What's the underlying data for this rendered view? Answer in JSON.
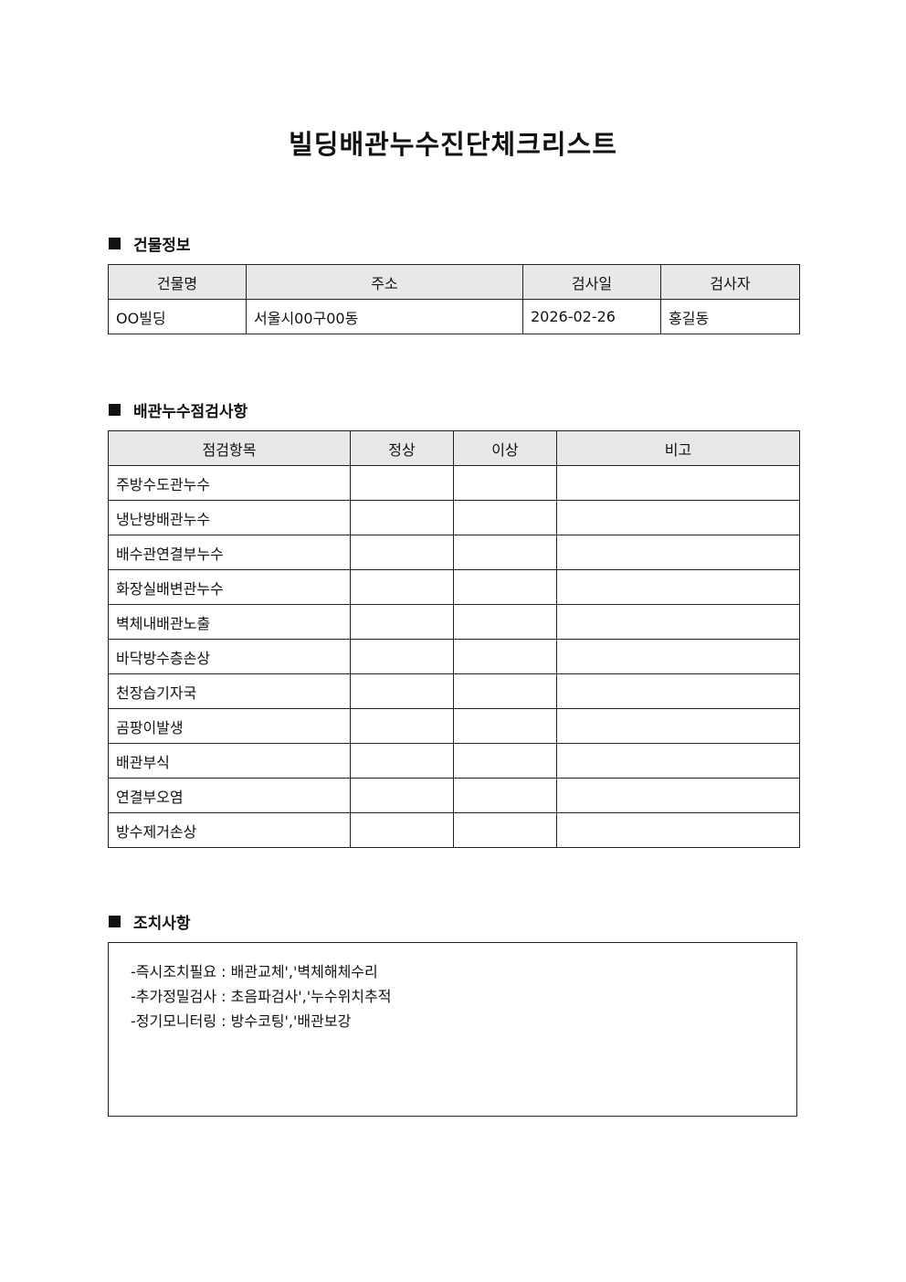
{
  "title": "빌딩배관누수진단체크리스트",
  "building_section": {
    "heading": "건물정보",
    "headers": [
      "건물명",
      "주소",
      "검사일",
      "검사자"
    ],
    "values": [
      "OO빌딩",
      "서울시00구00동",
      "2026-02-26",
      "홍길동"
    ]
  },
  "inspection_section": {
    "heading": "배관누수점검사항",
    "headers": [
      "점검항목",
      "정상",
      "이상",
      "비고"
    ],
    "items": [
      "주방수도관누수",
      "냉난방배관누수",
      "배수관연결부누수",
      "화장실배변관누수",
      "벽체내배관노출",
      "바닥방수층손상",
      "천장습기자국",
      "곰팡이발생",
      "배관부식",
      "연결부오염",
      "방수제거손상"
    ]
  },
  "action_section": {
    "heading": "조치사항",
    "lines": [
      "-즉시조치필요 : 배관교체','벽체해체수리",
      "-추가정밀검사 : 초음파검사','누수위치추적",
      "-정기모니터링 : 방수코팅','배관보강"
    ]
  }
}
